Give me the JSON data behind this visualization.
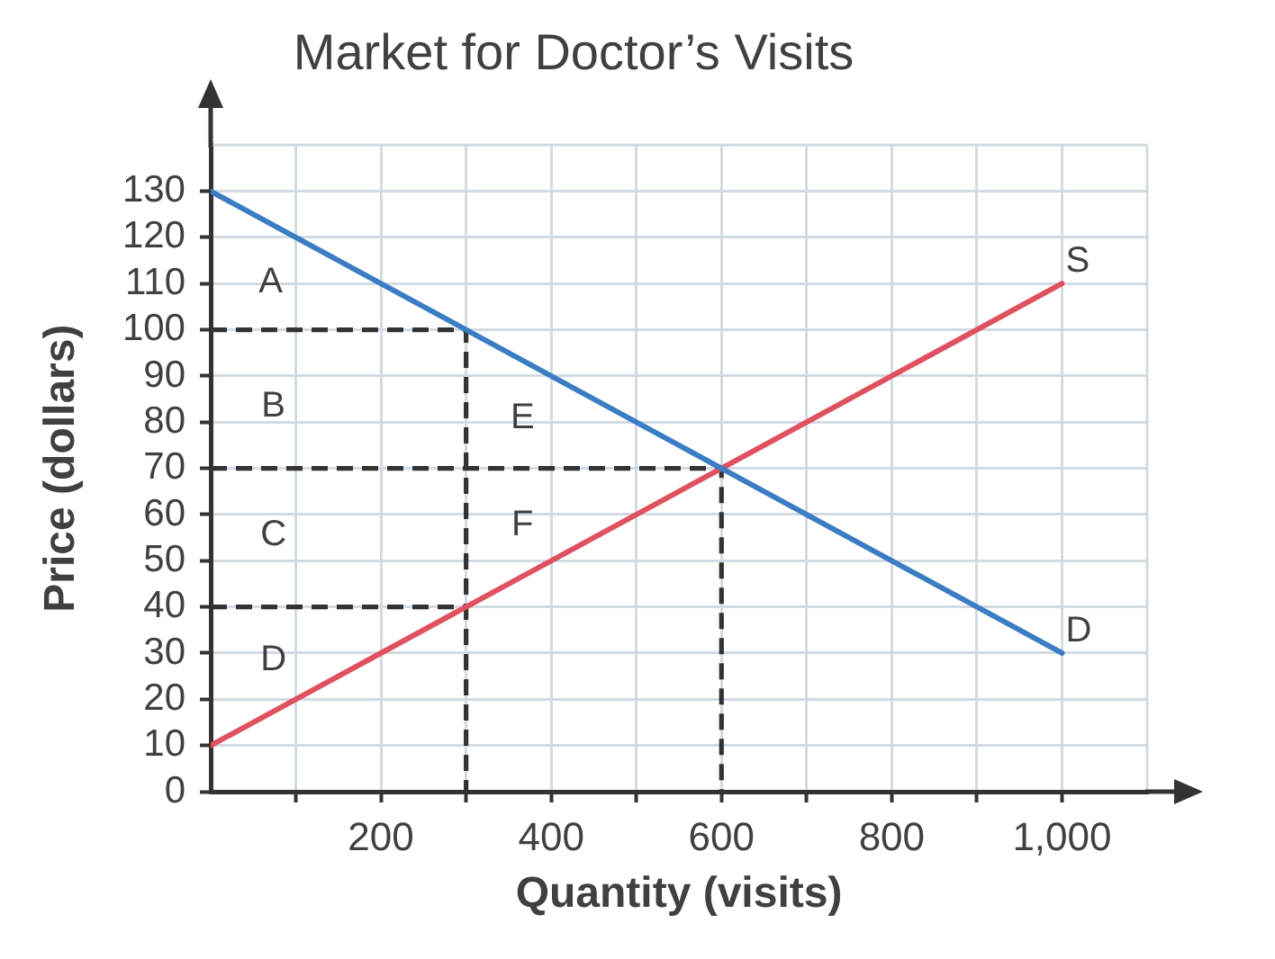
{
  "chart_data": {
    "type": "line",
    "title": "Market for Doctor’s Visits",
    "xlabel": "Quantity (visits)",
    "ylabel": "Price (dollars)",
    "xlim": [
      0,
      1100
    ],
    "xticks": [
      {
        "value": 100,
        "label": null
      },
      200,
      {
        "value": 300,
        "label": null
      },
      400,
      {
        "value": 500,
        "label": null
      },
      600,
      {
        "value": 700,
        "label": null
      },
      800,
      {
        "value": 900,
        "label": null
      },
      {
        "value": 1000,
        "label": "1,000"
      }
    ],
    "ylim": [
      0,
      140
    ],
    "yticks": [
      0,
      10,
      20,
      30,
      40,
      50,
      60,
      70,
      80,
      90,
      100,
      110,
      120,
      130
    ],
    "series": [
      {
        "name": "D",
        "color": "#3b7dc4",
        "x": [
          0,
          1000
        ],
        "values": [
          130,
          30
        ]
      },
      {
        "name": "S",
        "color": "#e0505e",
        "x": [
          0,
          1000
        ],
        "values": [
          10,
          110
        ]
      },
      {
        "type": "line",
        "color": "#333333",
        "line_style": "dashed",
        "x": [
          0,
          300,
          300
        ],
        "values": [
          100,
          100,
          0
        ]
      },
      {
        "type": "line",
        "color": "#333333",
        "line_style": "dashed",
        "x": [
          0,
          600,
          600
        ],
        "values": [
          70,
          70,
          0
        ]
      },
      {
        "type": "line",
        "color": "#333333",
        "line_style": "dashed",
        "x": [
          0,
          300
        ],
        "values": [
          40,
          40
        ]
      }
    ],
    "annotations": [
      "A",
      "B",
      "C",
      "D",
      "E",
      "F"
    ],
    "grid": true,
    "legend": false,
    "marker": "none",
    "line_style": "solid"
  }
}
